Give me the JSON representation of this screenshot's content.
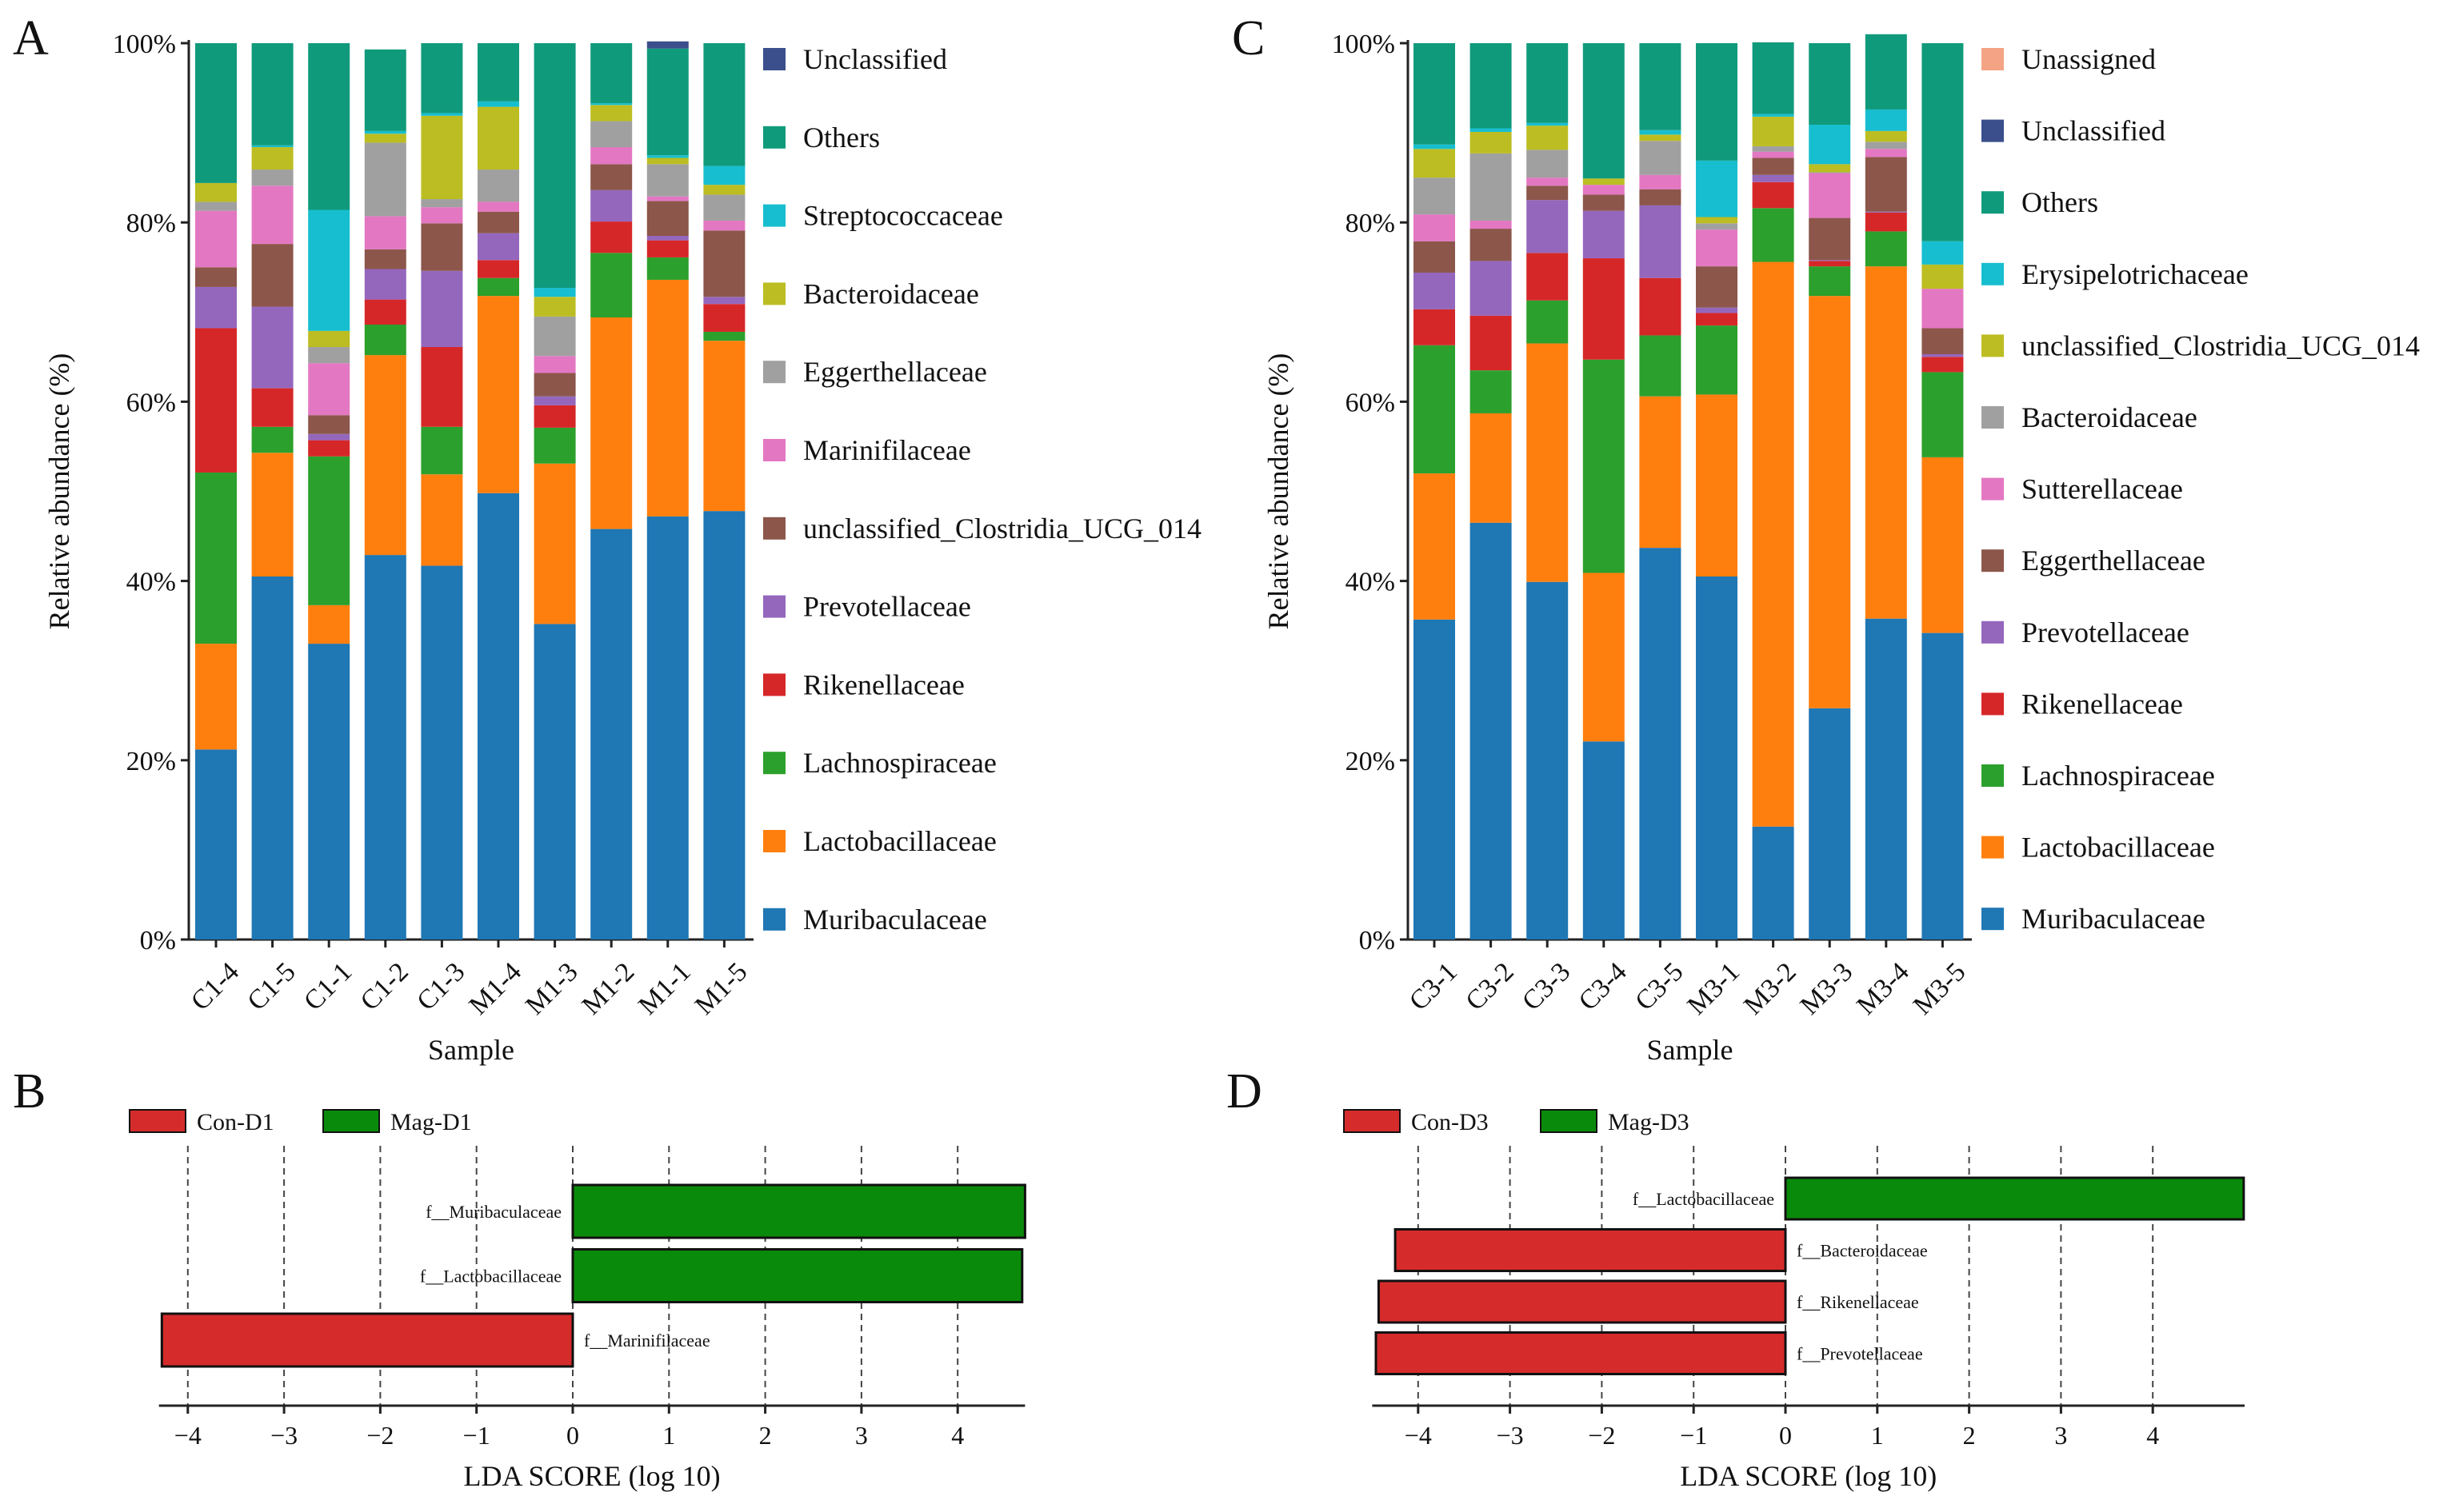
{
  "chart_data": [
    {
      "panel": "A",
      "type": "stacked-bar",
      "xlabel": "Sample",
      "ylabel": "Relative abundance (%)",
      "ylim": [
        0,
        100
      ],
      "y_ticks": [
        "0%",
        "20%",
        "40%",
        "60%",
        "80%",
        "100%"
      ],
      "categories": [
        "C1-4",
        "C1-5",
        "C1-1",
        "C1-2",
        "C1-3",
        "M1-4",
        "M1-3",
        "M1-2",
        "M1-1",
        "M1-5"
      ],
      "series": [
        {
          "name": "Muribaculaceae",
          "color": "#1f77b4",
          "values": [
            21.2,
            40.5,
            33.0,
            42.9,
            41.7,
            49.8,
            35.2,
            45.8,
            47.2,
            47.8
          ]
        },
        {
          "name": "Lactobacillaceae",
          "color": "#ff7f0e",
          "values": [
            11.8,
            13.8,
            4.3,
            22.3,
            10.2,
            22.0,
            17.9,
            23.6,
            26.4,
            19.0
          ]
        },
        {
          "name": "Lachnospiraceae",
          "color": "#2ca02c",
          "values": [
            19.1,
            2.9,
            16.6,
            3.4,
            5.3,
            2.0,
            4.0,
            7.2,
            2.5,
            1.0
          ]
        },
        {
          "name": "Rikenellaceae",
          "color": "#d62728",
          "values": [
            16.1,
            4.3,
            1.8,
            2.8,
            8.9,
            2.0,
            2.5,
            3.5,
            1.9,
            3.1
          ]
        },
        {
          "name": "Prevotellaceae",
          "color": "#9467bd",
          "values": [
            4.6,
            9.1,
            0.7,
            3.4,
            8.5,
            3.0,
            1.0,
            3.5,
            0.5,
            0.8
          ]
        },
        {
          "name": "unclassified_Clostridia_UCG_014",
          "color": "#8c564b",
          "values": [
            2.2,
            7.0,
            2.1,
            2.2,
            5.3,
            2.4,
            2.6,
            2.9,
            3.9,
            7.4
          ]
        },
        {
          "name": "Marinifilaceae",
          "color": "#e377c2",
          "values": [
            6.3,
            6.5,
            5.8,
            3.7,
            1.8,
            1.1,
            1.9,
            1.9,
            0.5,
            1.1
          ]
        },
        {
          "name": "Eggerthellaceae",
          "color": "#a0a0a0",
          "values": [
            1.0,
            1.8,
            1.8,
            8.2,
            0.9,
            3.6,
            4.4,
            2.9,
            3.6,
            2.9
          ]
        },
        {
          "name": "Bacteroidaceae",
          "color": "#bcbd22",
          "values": [
            2.1,
            2.5,
            1.8,
            1.0,
            9.3,
            7.0,
            2.2,
            1.8,
            0.7,
            1.1
          ]
        },
        {
          "name": "Streptococcaceae",
          "color": "#17becf",
          "values": [
            0.0,
            0.2,
            13.5,
            0.3,
            0.3,
            0.6,
            1.0,
            0.2,
            0.3,
            2.1
          ]
        },
        {
          "name": "Others",
          "color": "#109a7c",
          "values": [
            15.6,
            11.4,
            18.6,
            9.1,
            7.8,
            6.5,
            27.3,
            6.7,
            11.9,
            13.7
          ]
        },
        {
          "name": "Unclassified",
          "color": "#3a4f8c",
          "values": [
            0.0,
            0.0,
            0.0,
            0.0,
            0.0,
            0.0,
            0.0,
            0.0,
            0.8,
            0.0
          ]
        }
      ],
      "legend": [
        "Unclassified",
        "Others",
        "Streptococcaceae",
        "Bacteroidaceae",
        "Eggerthellaceae",
        "Marinifilaceae",
        "unclassified_Clostridia_UCG_014",
        "Prevotellaceae",
        "Rikenellaceae",
        "Lachnospiraceae",
        "Lactobacillaceae",
        "Muribaculaceae"
      ]
    },
    {
      "panel": "C",
      "type": "stacked-bar",
      "xlabel": "Sample",
      "ylabel": "Relative abundance (%)",
      "ylim": [
        0,
        100
      ],
      "y_ticks": [
        "0%",
        "20%",
        "40%",
        "60%",
        "80%",
        "100%"
      ],
      "categories": [
        "C3-1",
        "C3-2",
        "C3-3",
        "C3-4",
        "C3-5",
        "M3-1",
        "M3-2",
        "M3-3",
        "M3-4",
        "M3-5"
      ],
      "series": [
        {
          "name": "Muribaculaceae",
          "color": "#1f77b4",
          "values": [
            35.7,
            46.5,
            39.9,
            22.1,
            43.7,
            40.5,
            12.6,
            25.8,
            35.8,
            34.2
          ]
        },
        {
          "name": "Lactobacillaceae",
          "color": "#ff7f0e",
          "values": [
            16.3,
            12.2,
            26.6,
            18.8,
            16.9,
            20.3,
            63.0,
            46.0,
            39.3,
            19.6
          ]
        },
        {
          "name": "Lachnospiraceae",
          "color": "#2ca02c",
          "values": [
            14.3,
            4.8,
            4.8,
            23.8,
            6.8,
            7.7,
            6.0,
            3.3,
            3.9,
            9.5
          ]
        },
        {
          "name": "Rikenellaceae",
          "color": "#d62728",
          "values": [
            4.0,
            6.1,
            5.3,
            11.3,
            6.4,
            1.4,
            2.9,
            0.6,
            2.1,
            1.7
          ]
        },
        {
          "name": "Prevotellaceae",
          "color": "#9467bd",
          "values": [
            4.1,
            6.1,
            5.9,
            5.3,
            8.1,
            0.6,
            0.8,
            0.1,
            0.1,
            0.3
          ]
        },
        {
          "name": "Eggerthellaceae",
          "color": "#8c564b",
          "values": [
            3.5,
            3.6,
            1.6,
            1.8,
            1.8,
            4.6,
            1.9,
            4.7,
            6.1,
            2.9
          ]
        },
        {
          "name": "Sutterellaceae",
          "color": "#e377c2",
          "values": [
            3.0,
            0.9,
            0.9,
            1.1,
            1.6,
            4.1,
            0.7,
            5.0,
            0.9,
            4.4
          ]
        },
        {
          "name": "Bacteroidaceae",
          "color": "#a0a0a0",
          "values": [
            4.1,
            7.5,
            3.1,
            0.0,
            3.8,
            0.7,
            0.6,
            0.1,
            0.8,
            0.0
          ]
        },
        {
          "name": "unclassified_Clostridia_UCG_014",
          "color": "#bcbd22",
          "values": [
            3.2,
            2.4,
            2.7,
            0.7,
            0.7,
            0.7,
            3.3,
            0.9,
            1.2,
            2.7
          ]
        },
        {
          "name": "Erysipelotrichaceae",
          "color": "#17becf",
          "values": [
            0.5,
            0.4,
            0.3,
            0.0,
            0.5,
            6.3,
            0.3,
            4.4,
            2.4,
            2.6
          ]
        },
        {
          "name": "Others",
          "color": "#109a7c",
          "values": [
            11.3,
            9.5,
            8.9,
            15.1,
            9.7,
            13.1,
            8.0,
            9.1,
            8.4,
            22.1
          ]
        },
        {
          "name": "Unclassified",
          "color": "#3a4f8c",
          "values": [
            0,
            0,
            0,
            0,
            0,
            0,
            0,
            0,
            0,
            0
          ]
        },
        {
          "name": "Unassigned",
          "color": "#f4a384",
          "values": [
            0,
            0,
            0,
            0,
            0,
            0,
            0,
            0,
            0,
            0
          ]
        }
      ],
      "legend": [
        "Unassigned",
        "Unclassified",
        "Others",
        "Erysipelotrichaceae",
        "unclassified_Clostridia_UCG_014",
        "Bacteroidaceae",
        "Sutterellaceae",
        "Eggerthellaceae",
        "Prevotellaceae",
        "Rikenellaceae",
        "Lachnospiraceae",
        "Lactobacillaceae",
        "Muribaculaceae"
      ]
    },
    {
      "panel": "B",
      "type": "bar",
      "orientation": "horizontal",
      "xlabel": "LDA SCORE (log 10)",
      "xlim": [
        -4.3,
        4.7
      ],
      "x_ticks": [
        "−4",
        "−3",
        "−2",
        "−1",
        "0",
        "1",
        "2",
        "3",
        "4"
      ],
      "groups": [
        {
          "name": "Con-D1",
          "color": "#d62b2b"
        },
        {
          "name": "Mag-D1",
          "color": "#0a8a0a"
        }
      ],
      "bars": [
        {
          "label": "f__Muribaculaceae",
          "value": 4.7,
          "group": "Mag-D1"
        },
        {
          "label": "f__Lactobacillaceae",
          "value": 4.67,
          "group": "Mag-D1"
        },
        {
          "label": "f__Marinifilaceae",
          "value": -4.27,
          "group": "Con-D1"
        }
      ]
    },
    {
      "panel": "D",
      "type": "bar",
      "orientation": "horizontal",
      "xlabel": "LDA SCORE (log 10)",
      "xlim": [
        -4.5,
        5.0
      ],
      "x_ticks": [
        "−4",
        "−3",
        "−2",
        "−1",
        "0",
        "1",
        "2",
        "3",
        "4"
      ],
      "groups": [
        {
          "name": "Con-D3",
          "color": "#d62b2b"
        },
        {
          "name": "Mag-D3",
          "color": "#0a8a0a"
        }
      ],
      "bars": [
        {
          "label": "f__Lactobacillaceae",
          "value": 4.99,
          "group": "Mag-D3"
        },
        {
          "label": "f__Bacteroidaceae",
          "value": -4.25,
          "group": "Con-D3"
        },
        {
          "label": "f__Rikenellaceae",
          "value": -4.43,
          "group": "Con-D3"
        },
        {
          "label": "f__Prevotellaceae",
          "value": -4.46,
          "group": "Con-D3"
        }
      ]
    }
  ]
}
